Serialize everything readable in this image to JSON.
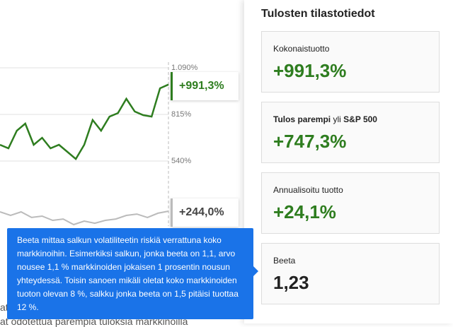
{
  "chart": {
    "type": "line",
    "ylim": [
      160,
      1090
    ],
    "yticks": [
      {
        "value": 1090,
        "label": "1.090%"
      },
      {
        "value": 815,
        "label": "815%"
      },
      {
        "value": 540,
        "label": "540%"
      }
    ],
    "series": [
      {
        "color": "#2e7d1f",
        "values": [
          636,
          615,
          719,
          761,
          636,
          677,
          615,
          636,
          594,
          552,
          636,
          782,
          719,
          802,
          823,
          907,
          832,
          811,
          802,
          969,
          991.3
        ],
        "value_labels": [
          null,
          null,
          null,
          null,
          null,
          null,
          null,
          null,
          null,
          null,
          null,
          null,
          null,
          null,
          null,
          null,
          null,
          null,
          null,
          null,
          "+991,3%"
        ]
      },
      {
        "color": "#bbbbbb",
        "values": [
          240,
          219,
          240,
          207,
          215,
          190,
          198,
          165,
          186,
          173,
          190,
          198,
          219,
          227,
          207,
          232,
          244
        ],
        "value_labels": [
          null,
          null,
          null,
          null,
          null,
          null,
          null,
          null,
          null,
          null,
          null,
          null,
          null,
          null,
          null,
          null,
          "+244,0%"
        ]
      }
    ]
  },
  "background_text": [
    "at",
    "at odotettua parempia tuloksia markkinoilla"
  ],
  "panel": {
    "title": "Tulosten tilastotiedot",
    "cards": [
      {
        "label": "Kokonaistuotto",
        "value": "+991,3%"
      },
      {
        "label_parts": [
          "Tulos parempi",
          "yli",
          "S&P 500"
        ],
        "value": "+747,3%"
      },
      {
        "label": "Annualisoitu tuotto",
        "value": "+24,1%"
      },
      {
        "label": "Beeta",
        "value": "1,23"
      }
    ]
  },
  "tooltip": "Beeta mittaa salkun volatiliteetin riskiä verrattuna koko markkinoihin. Esimerkiksi salkun, jonka beeta on 1,1, arvo nousee 1,1 % markkinoiden jokaisen 1 prosentin nousun yhteydessä. Toisin sanoen mikäli oletat koko markkinoiden tuoton olevan 8 %, salkku jonka beeta on 1,5 pitäisi tuottaa 12 %."
}
